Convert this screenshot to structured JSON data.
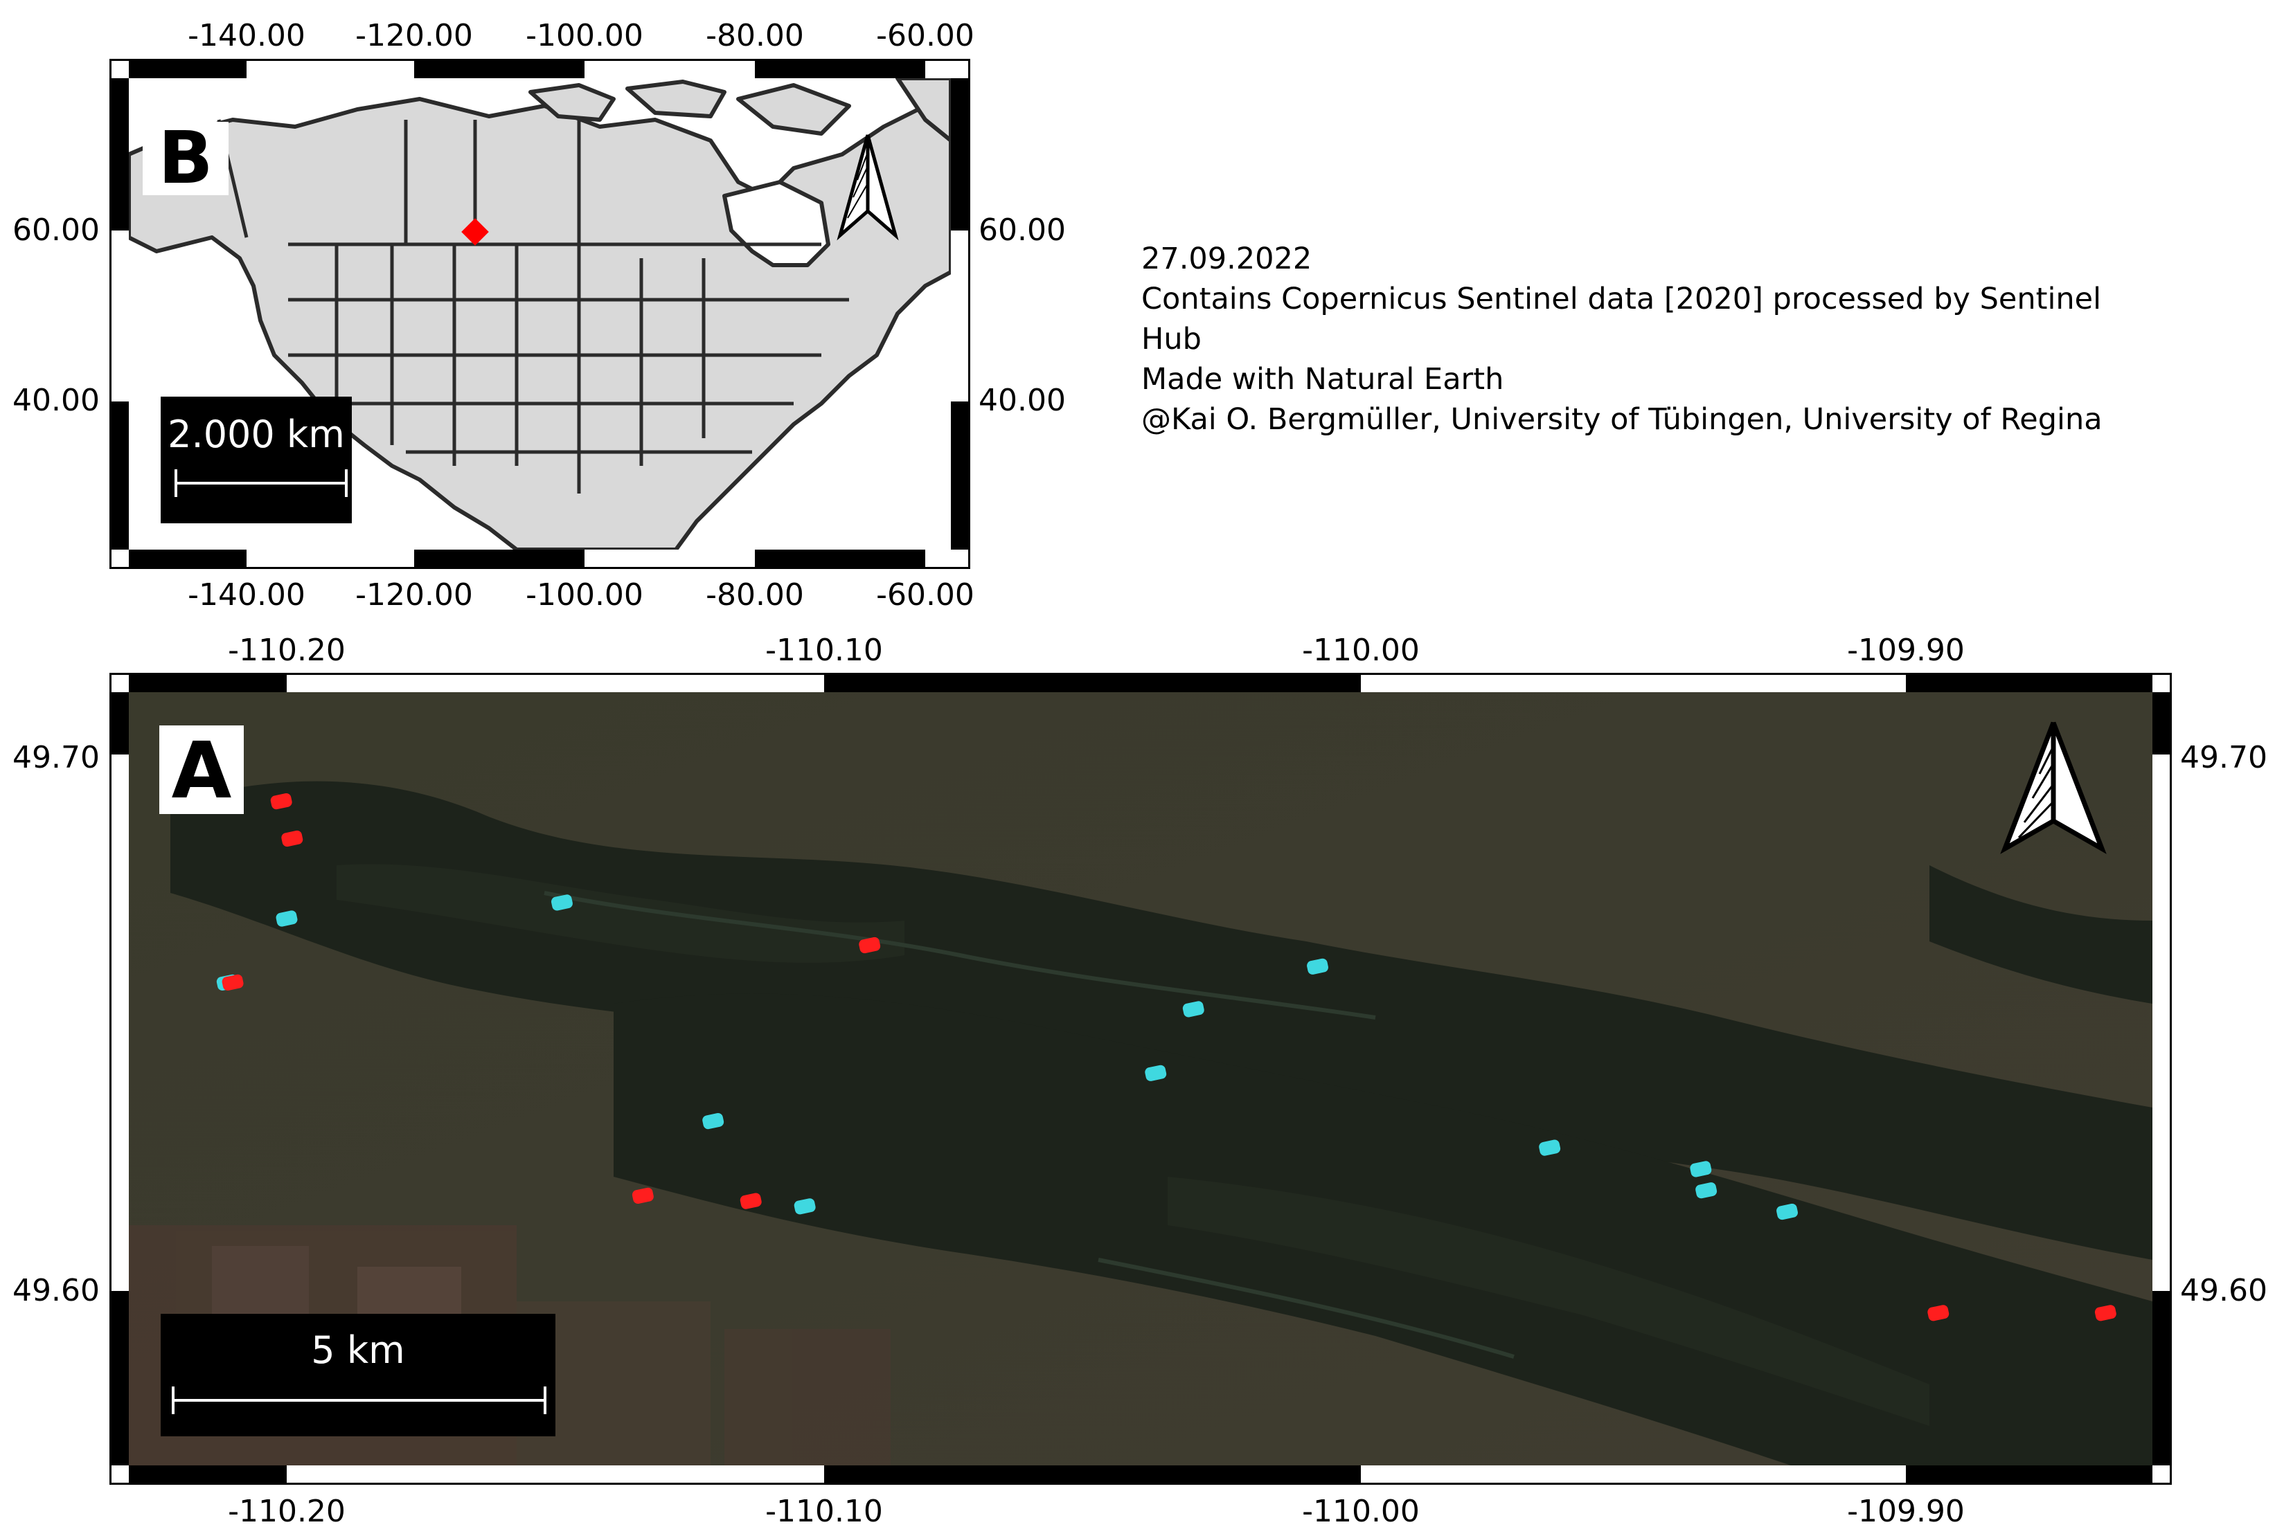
{
  "inset": {
    "panel_label": "B",
    "lon_labels": [
      "-140.00",
      "-120.00",
      "-100.00",
      "-80.00",
      "-60.00"
    ],
    "lat_labels": [
      "60.00",
      "40.00"
    ],
    "scale_label": "2.000 km",
    "location_marker": {
      "lon": -110.0,
      "lat": 49.65,
      "color": "#ff0000"
    }
  },
  "main": {
    "panel_label": "A",
    "lon_labels": [
      "-110.20",
      "-110.10",
      "-110.00",
      "-109.90"
    ],
    "lat_labels": [
      "49.70",
      "49.60"
    ],
    "scale_label": "5 km",
    "colors": {
      "red_sites": "#ff1e1e",
      "cyan_sites": "#3fd8e0"
    },
    "cyan_sites": [
      {
        "lon": -110.2,
        "lat": 49.67
      },
      {
        "lon": -110.211,
        "lat": 49.658
      },
      {
        "lon": -110.149,
        "lat": 49.673
      },
      {
        "lon": -110.121,
        "lat": 49.632
      },
      {
        "lon": -110.104,
        "lat": 49.616
      },
      {
        "lon": -110.039,
        "lat": 49.641
      },
      {
        "lon": -110.032,
        "lat": 49.653
      },
      {
        "lon": -110.009,
        "lat": 49.661
      },
      {
        "lon": -109.966,
        "lat": 49.627
      },
      {
        "lon": -109.938,
        "lat": 49.623
      },
      {
        "lon": -109.937,
        "lat": 49.619
      },
      {
        "lon": -109.922,
        "lat": 49.615
      }
    ],
    "red_sites": [
      {
        "lon": -110.201,
        "lat": 49.692
      },
      {
        "lon": -110.199,
        "lat": 49.685
      },
      {
        "lon": -110.21,
        "lat": 49.658
      },
      {
        "lon": -110.092,
        "lat": 49.665
      },
      {
        "lon": -110.134,
        "lat": 49.618
      },
      {
        "lon": -110.114,
        "lat": 49.617
      },
      {
        "lon": -109.894,
        "lat": 49.596
      },
      {
        "lon": -109.863,
        "lat": 49.596
      }
    ]
  },
  "attribution": [
    "27.09.2022",
    "Contains Copernicus Sentinel data [2020] processed by Sentinel",
    "Hub",
    "Made with Natural Earth",
    "@Kai O. Bergmüller, University of Tübingen, University of Regina"
  ]
}
